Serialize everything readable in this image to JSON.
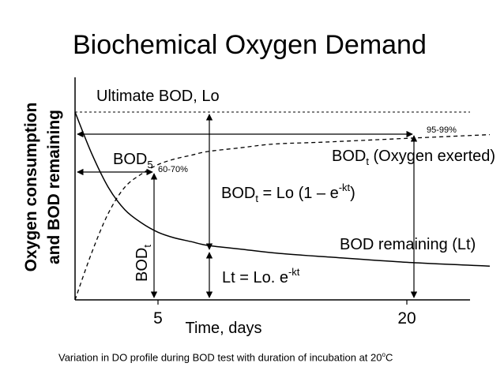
{
  "slide": {
    "title": "Biochemical Oxygen Demand",
    "caption_prefix": "Variation in DO profile during BOD test with duration of incubation at 20",
    "caption_superscript": "o",
    "caption_suffix": "C"
  },
  "chart_data": {
    "type": "line",
    "ylabel_line1": "Oxygen consumption",
    "ylabel_line2": "and BOD remaining",
    "xlabel": "Time, days",
    "x_ticks": [
      5,
      20
    ],
    "xlim": [
      0,
      25
    ],
    "ylim": [
      0,
      1.1
    ],
    "grid": false,
    "series": [
      {
        "name": "BOD remaining (Lt)",
        "style": "solid",
        "x": [
          0,
          1,
          2,
          3,
          4,
          5,
          6,
          7,
          8,
          10,
          12,
          15,
          20,
          25
        ],
        "y": [
          1.0,
          0.78,
          0.6,
          0.48,
          0.41,
          0.36,
          0.33,
          0.31,
          0.29,
          0.27,
          0.25,
          0.23,
          0.2,
          0.18
        ]
      },
      {
        "name": "BODt (Oxygen exerted)",
        "style": "dashed",
        "x": [
          0,
          1,
          2,
          3,
          4,
          5,
          6,
          7,
          8,
          10,
          12,
          15,
          20,
          25
        ],
        "y": [
          0,
          0.25,
          0.46,
          0.6,
          0.67,
          0.72,
          0.75,
          0.77,
          0.79,
          0.81,
          0.83,
          0.84,
          0.86,
          0.88
        ]
      }
    ],
    "annotations": {
      "ultimate_label": "Ultimate BOD, Lo",
      "bod5_main": "BOD",
      "bod5_sub": "5",
      "pct_60_70": "60-70%",
      "pct_95_99": "95-99%",
      "bodt_main": "BOD",
      "bodt_sub": "t",
      "bodt_exerted_suffix": " (Oxygen exerted)",
      "formula_bodt_main": "BOD",
      "formula_bodt_sub": "t",
      "formula_bodt_rest": " = Lo (1 – e",
      "formula_bodt_exp": "-kt",
      "formula_bodt_close": ")",
      "remaining_label": "BOD remaining (Lt)",
      "formula_lt": "Lt = Lo. e",
      "formula_lt_exp": "-kt",
      "vertical_bodt_main": "BOD",
      "vertical_bodt_sub": "t"
    }
  }
}
